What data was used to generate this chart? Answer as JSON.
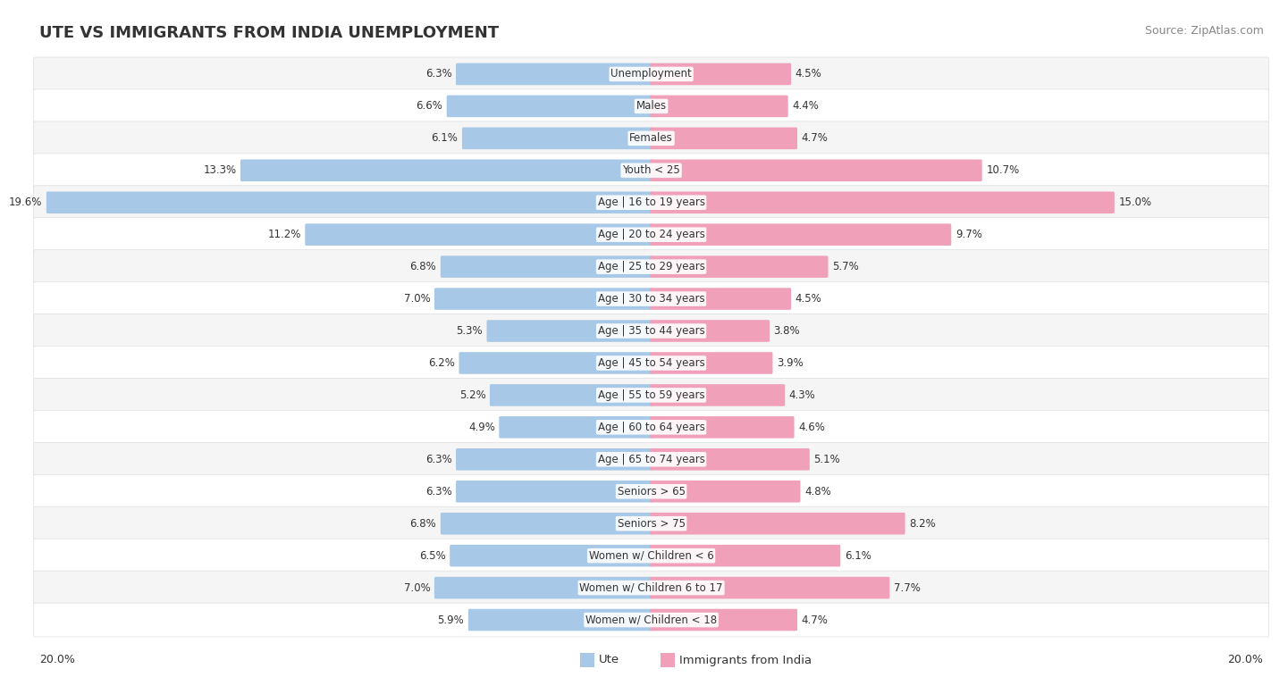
{
  "title": "UTE VS IMMIGRANTS FROM INDIA UNEMPLOYMENT",
  "source": "Source: ZipAtlas.com",
  "categories": [
    "Unemployment",
    "Males",
    "Females",
    "Youth < 25",
    "Age | 16 to 19 years",
    "Age | 20 to 24 years",
    "Age | 25 to 29 years",
    "Age | 30 to 34 years",
    "Age | 35 to 44 years",
    "Age | 45 to 54 years",
    "Age | 55 to 59 years",
    "Age | 60 to 64 years",
    "Age | 65 to 74 years",
    "Seniors > 65",
    "Seniors > 75",
    "Women w/ Children < 6",
    "Women w/ Children 6 to 17",
    "Women w/ Children < 18"
  ],
  "ute_values": [
    6.3,
    6.6,
    6.1,
    13.3,
    19.6,
    11.2,
    6.8,
    7.0,
    5.3,
    6.2,
    5.2,
    4.9,
    6.3,
    6.3,
    6.8,
    6.5,
    7.0,
    5.9
  ],
  "india_values": [
    4.5,
    4.4,
    4.7,
    10.7,
    15.0,
    9.7,
    5.7,
    4.5,
    3.8,
    3.9,
    4.3,
    4.6,
    5.1,
    4.8,
    8.2,
    6.1,
    7.7,
    4.7
  ],
  "ute_color": "#a8c8e8",
  "india_color": "#f0a0b8",
  "row_bg_color_light": "#f5f5f5",
  "row_bg_color_white": "#ffffff",
  "max_value": 20.0,
  "legend_ute": "Ute",
  "legend_india": "Immigrants from India"
}
